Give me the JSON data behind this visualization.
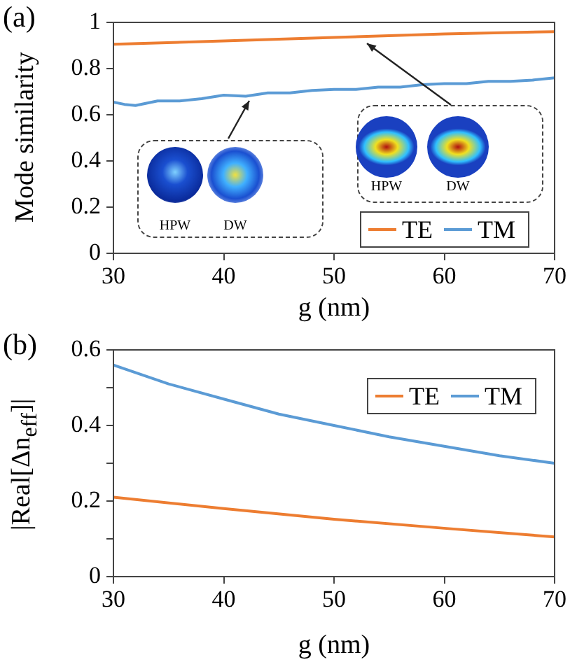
{
  "chart_data": [
    {
      "type": "line",
      "title": "(a)",
      "xlabel": "g (nm)",
      "ylabel": "Mode similarity",
      "xlim": [
        30,
        70
      ],
      "xticks": [
        30,
        40,
        50,
        60,
        70
      ],
      "ylim": [
        0,
        1
      ],
      "yticks": [
        0,
        0.2,
        0.4,
        0.6,
        0.8,
        1
      ],
      "legend": "bottom right",
      "grid": false,
      "annotations": [
        "HPW",
        "DW",
        "HPW",
        "DW"
      ],
      "series": [
        {
          "name": "TE",
          "color": "#ed7d31",
          "x": [
            30,
            40,
            50,
            60,
            70
          ],
          "values": [
            0.905,
            0.92,
            0.935,
            0.95,
            0.96
          ]
        },
        {
          "name": "TM",
          "color": "#5b9bd5",
          "x": [
            30,
            31,
            32,
            34,
            36,
            38,
            40,
            42,
            44,
            46,
            48,
            50,
            52,
            54,
            56,
            58,
            60,
            62,
            64,
            66,
            68,
            70
          ],
          "values": [
            0.655,
            0.645,
            0.64,
            0.66,
            0.66,
            0.67,
            0.685,
            0.68,
            0.695,
            0.695,
            0.705,
            0.71,
            0.71,
            0.72,
            0.72,
            0.73,
            0.735,
            0.735,
            0.745,
            0.745,
            0.75,
            0.76
          ]
        }
      ]
    },
    {
      "type": "line",
      "title": "(b)",
      "xlabel": "g (nm)",
      "ylabel": "|Real[Δn$_{eff}$]|",
      "xlim": [
        30,
        70
      ],
      "xticks": [
        30,
        40,
        50,
        60,
        70
      ],
      "ylim": [
        0,
        0.6
      ],
      "yticks": [
        0,
        {
          "value": 0.1,
          "label": null
        },
        0.2,
        {
          "value": 0.3,
          "label": null
        },
        0.4,
        {
          "value": 0.5,
          "label": null
        },
        0.6
      ],
      "legend": "top right",
      "grid": false,
      "series": [
        {
          "name": "TE",
          "color": "#ed7d31",
          "x": [
            30,
            40,
            50,
            60,
            70
          ],
          "values": [
            0.21,
            0.18,
            0.152,
            0.128,
            0.105
          ]
        },
        {
          "name": "TM",
          "color": "#5b9bd5",
          "x": [
            30,
            35,
            40,
            45,
            50,
            55,
            60,
            65,
            70
          ],
          "values": [
            0.56,
            0.51,
            0.47,
            0.43,
            0.4,
            0.37,
            0.345,
            0.32,
            0.3
          ]
        }
      ]
    }
  ]
}
